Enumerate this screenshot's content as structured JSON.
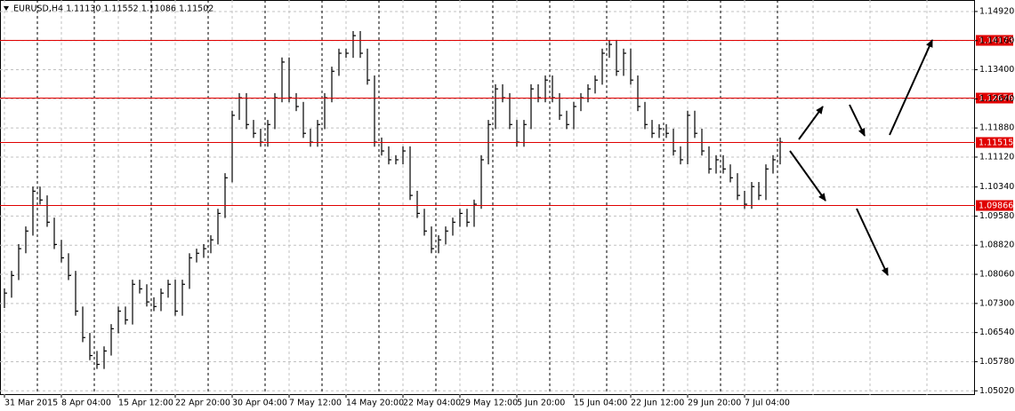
{
  "chart_data": {
    "type": "ohlc",
    "title": "EURUSD,H4  1.11130 1.11552 1.11086 1.11502",
    "categories": [
      "31 Mar 2015",
      null,
      null,
      null,
      null,
      null,
      null,
      null,
      "8 Apr 04:00",
      null,
      null,
      null,
      null,
      null,
      null,
      null,
      "15 Apr 12:00",
      null,
      null,
      null,
      null,
      null,
      null,
      null,
      "22 Apr 20:00",
      null,
      null,
      null,
      null,
      null,
      null,
      null,
      "30 Apr 04:00",
      null,
      null,
      null,
      null,
      null,
      null,
      null,
      "7 May 12:00",
      null,
      null,
      null,
      null,
      null,
      null,
      null,
      "14 May 20:00",
      null,
      null,
      null,
      null,
      null,
      null,
      null,
      "22 May 04:00",
      null,
      null,
      null,
      null,
      null,
      null,
      null,
      "29 May 12:00",
      null,
      null,
      null,
      null,
      null,
      null,
      null,
      "5 Jun 20:00",
      null,
      null,
      null,
      null,
      null,
      null,
      null,
      "15 Jun 04:00",
      null,
      null,
      null,
      null,
      null,
      null,
      null,
      "22 Jun 12:00",
      null,
      null,
      null,
      null,
      null,
      null,
      null,
      "29 Jun 20:00",
      null,
      null,
      null,
      null,
      null,
      null,
      null,
      "7 Jul 04:00",
      null,
      null,
      null,
      null,
      null
    ],
    "high": [
      1.0769,
      1.0815,
      1.0885,
      1.0931,
      1.1035,
      1.1035,
      1.1012,
      1.0954,
      1.0896,
      1.0861,
      1.0815,
      1.0722,
      1.0653,
      1.0606,
      1.0618,
      1.0676,
      1.0722,
      1.0722,
      1.0792,
      1.0792,
      1.078,
      1.0746,
      1.0769,
      1.0792,
      1.0792,
      1.0792,
      1.0861,
      1.0873,
      1.0885,
      1.0908,
      1.0977,
      1.107,
      1.1233,
      1.1279,
      1.1279,
      1.1209,
      1.1186,
      1.1209,
      1.1279,
      1.1372,
      1.1372,
      1.1279,
      1.1256,
      1.1186,
      1.1209,
      1.1279,
      1.1348,
      1.1395,
      1.1395,
      1.1441,
      1.1441,
      1.1395,
      1.1325,
      1.1163,
      1.114,
      1.1117,
      1.114,
      1.114,
      1.1024,
      1.0977,
      1.0931,
      1.0908,
      1.0931,
      1.0954,
      1.0977,
      1.0977,
      1.1001,
      1.1117,
      1.1209,
      1.1302,
      1.1302,
      1.1279,
      1.1209,
      1.1209,
      1.1302,
      1.1302,
      1.1325,
      1.1325,
      1.1279,
      1.1233,
      1.1256,
      1.1279,
      1.1302,
      1.1325,
      1.1395,
      1.1418,
      1.1418,
      1.1395,
      1.1395,
      1.1325,
      1.1256,
      1.1209,
      1.1198,
      1.1198,
      1.1186,
      1.114,
      1.1233,
      1.1233,
      1.1186,
      1.114,
      1.1117,
      1.1117,
      1.1093,
      1.107,
      1.1024,
      1.1047,
      1.1047,
      1.1093,
      1.1117,
      1.1163
    ],
    "low": [
      1.0718,
      1.0745,
      1.0791,
      1.0861,
      1.0907,
      1.0988,
      1.093,
      1.0872,
      1.0837,
      1.0791,
      1.0698,
      1.0629,
      1.0582,
      1.0559,
      1.0559,
      1.0594,
      1.0652,
      1.0675,
      1.0675,
      1.0756,
      1.0722,
      1.071,
      1.071,
      1.0745,
      1.0698,
      1.0698,
      1.0768,
      1.0837,
      1.0849,
      1.0861,
      1.0884,
      1.0953,
      1.1046,
      1.1209,
      1.1185,
      1.1162,
      1.1139,
      1.1139,
      1.1185,
      1.1255,
      1.1255,
      1.1232,
      1.1162,
      1.1139,
      1.1139,
      1.1185,
      1.1255,
      1.1324,
      1.1371,
      1.1371,
      1.1371,
      1.1301,
      1.1139,
      1.1116,
      1.1093,
      1.1093,
      1.1093,
      1.1,
      1.0953,
      1.0907,
      1.0861,
      1.0861,
      1.0884,
      1.0907,
      1.093,
      1.093,
      1.093,
      1.0977,
      1.1093,
      1.1185,
      1.1255,
      1.1185,
      1.1139,
      1.1139,
      1.1185,
      1.1255,
      1.1255,
      1.1255,
      1.1209,
      1.1185,
      1.1185,
      1.1232,
      1.1255,
      1.1278,
      1.1301,
      1.1371,
      1.1324,
      1.1324,
      1.1301,
      1.1232,
      1.1185,
      1.1162,
      1.1162,
      1.1162,
      1.1116,
      1.1093,
      1.1093,
      1.1162,
      1.1116,
      1.1069,
      1.1069,
      1.1069,
      1.1046,
      1.1,
      1.0977,
      1.0977,
      1.1,
      1.1,
      1.1069,
      1.1093
    ],
    "close": [
      1.0757,
      1.0803,
      1.0873,
      1.0919,
      1.1023,
      1.1,
      1.0942,
      1.0884,
      1.0849,
      1.0803,
      1.071,
      1.0641,
      1.0594,
      1.0571,
      1.0606,
      1.0664,
      1.071,
      1.0687,
      1.078,
      1.0768,
      1.0734,
      1.0722,
      1.0757,
      1.078,
      1.071,
      1.078,
      1.0849,
      1.0861,
      1.0873,
      1.0896,
      1.0965,
      1.1058,
      1.1221,
      1.1267,
      1.1197,
      1.1174,
      1.1151,
      1.1197,
      1.1267,
      1.136,
      1.1267,
      1.1244,
      1.1174,
      1.1151,
      1.1197,
      1.1267,
      1.1336,
      1.1383,
      1.1383,
      1.1429,
      1.1383,
      1.1313,
      1.1151,
      1.1128,
      1.1105,
      1.1105,
      1.1128,
      1.1012,
      1.0965,
      1.0919,
      1.0873,
      1.0896,
      1.0919,
      1.0942,
      1.0965,
      1.0942,
      1.0989,
      1.1105,
      1.1197,
      1.129,
      1.1267,
      1.1197,
      1.1151,
      1.1197,
      1.129,
      1.1267,
      1.1313,
      1.1267,
      1.1221,
      1.1197,
      1.1244,
      1.1267,
      1.129,
      1.1313,
      1.1383,
      1.1406,
      1.1336,
      1.1383,
      1.1313,
      1.1244,
      1.1197,
      1.1174,
      1.1186,
      1.1174,
      1.1128,
      1.1105,
      1.1221,
      1.1174,
      1.1128,
      1.1081,
      1.1105,
      1.1081,
      1.1058,
      1.1012,
      1.0989,
      1.1035,
      1.1012,
      1.1081,
      1.1105,
      1.1151
    ],
    "color": "#000000",
    "ylim": [
      1.0491,
      1.1522
    ],
    "yticks": [
      {
        "value": 1.1492,
        "label": "1.14920"
      },
      {
        "value": 1.1416,
        "label": "1.14160"
      },
      {
        "value": 1.134,
        "label": "1.13400"
      },
      {
        "value": 1.1264,
        "label": "1.12640"
      },
      {
        "value": 1.1188,
        "label": "1.11880"
      },
      {
        "value": 1.1112,
        "label": "1.11120"
      },
      {
        "value": 1.1034,
        "label": "1.10340"
      },
      {
        "value": 1.0958,
        "label": "1.09580"
      },
      {
        "value": 1.0882,
        "label": "1.08820"
      },
      {
        "value": 1.0806,
        "label": "1.08060"
      },
      {
        "value": 1.073,
        "label": "1.07300"
      },
      {
        "value": 1.0654,
        "label": "1.06540"
      },
      {
        "value": 1.0578,
        "label": "1.05780"
      },
      {
        "value": 1.0502,
        "label": "1.05020"
      }
    ],
    "levels": [
      1.14173,
      1.12676,
      1.11515,
      1.09866
    ],
    "level_color": "#e00000",
    "grid": true
  }
}
